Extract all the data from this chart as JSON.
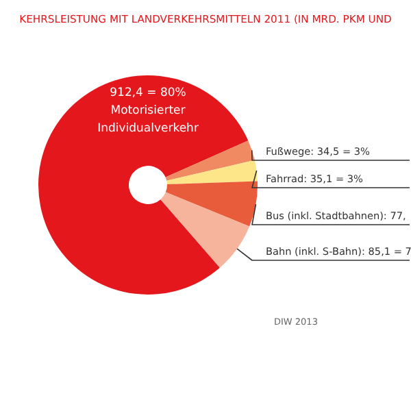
{
  "chart_data": {
    "type": "donut",
    "title": "KEHRSLEISTUNG MIT LANDVERKEHRSMITTELN 2011 (IN MRD. PKM UND",
    "categories": [
      "Motorisierter Individualverkehr",
      "Fußwege",
      "Fahrrad",
      "Bus (inkl. Stadtbahnen)",
      "Bahn (inkl. S-Bahn)"
    ],
    "values": [
      912.4,
      34.5,
      35.1,
      77,
      85.1
    ],
    "value_labels": [
      "912,4 = 80%",
      "34,5 = 3%",
      "35,1 = 3%",
      "77,",
      "85,1 = 7"
    ],
    "colors": [
      "#e3171c",
      "#ef8a62",
      "#fde68a",
      "#e85c3c",
      "#f5b49b"
    ],
    "legend": false,
    "annotations": [
      "DIW 2013"
    ]
  }
}
